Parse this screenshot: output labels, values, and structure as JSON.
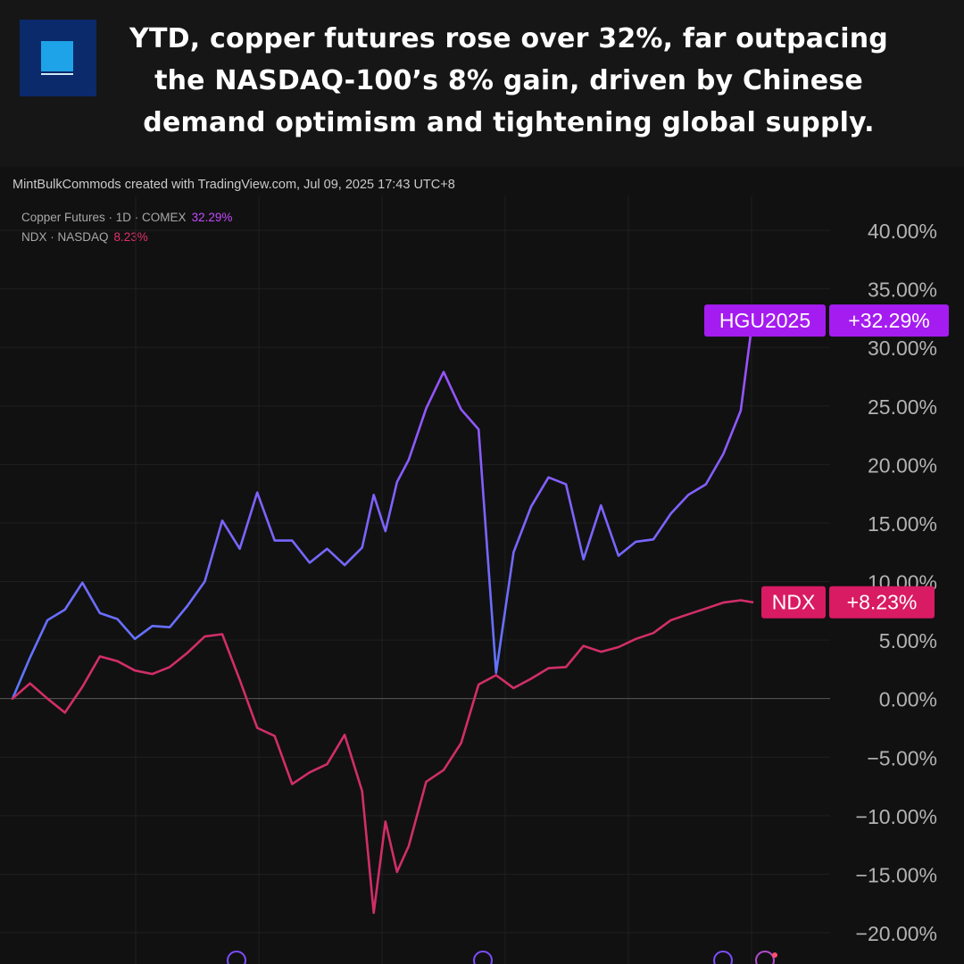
{
  "headline": "YTD, copper futures rose over 32%, far outpacing the NASDAQ-100’s 8% gain, driven by Chinese demand optimism and tightening global supply.",
  "attribution": "MintBulkCommods created with TradingView.com, Jul 09, 2025 17:43 UTC+8",
  "legend": [
    {
      "label": "Copper Futures · 1D · COMEX",
      "value": "32.29%",
      "color": "#c34bff"
    },
    {
      "label": "NDX · NASDAQ",
      "value": "8.23%",
      "color": "#e0306a"
    }
  ],
  "colors": {
    "copper_line_top": "#a24dff",
    "copper_line_bottom": "#5a78ff",
    "ndx_line": "#d12e68",
    "copper_tag": "#a51cf0",
    "ndx_tag": "#d81b62"
  },
  "chart_data": {
    "type": "line",
    "title": "",
    "xlabel": "",
    "ylabel": "",
    "ylim": [
      -20,
      40
    ],
    "y_ticks": [
      "40.00%",
      "35.00%",
      "30.00%",
      "25.00%",
      "20.00%",
      "15.00%",
      "10.00%",
      "5.00%",
      "0.00%",
      "−5.00%",
      "−10.00%",
      "−15.00%",
      "−20.00%"
    ],
    "y_tick_values": [
      40,
      35,
      30,
      25,
      20,
      15,
      10,
      5,
      0,
      -5,
      -10,
      -15,
      -20
    ],
    "grid": true,
    "x_range": [
      0,
      127
    ],
    "series": [
      {
        "name": "HGU2025",
        "color": "#a24dff",
        "x": [
          0,
          3,
          6,
          9,
          12,
          15,
          18,
          21,
          24,
          27,
          30,
          33,
          36,
          39,
          42,
          45,
          48,
          51,
          54,
          57,
          60,
          62,
          64,
          66,
          68,
          71,
          74,
          77,
          80,
          83,
          86,
          89,
          92,
          95,
          98,
          101,
          104,
          107,
          110,
          113,
          116,
          119,
          122,
          125,
          127
        ],
        "values": [
          0,
          3.5,
          6.7,
          7.6,
          9.9,
          7.3,
          6.8,
          5.1,
          6.2,
          6.1,
          7.9,
          10.0,
          15.2,
          12.8,
          17.6,
          13.5,
          13.5,
          11.6,
          12.8,
          11.4,
          12.9,
          17.4,
          14.3,
          18.5,
          20.4,
          24.8,
          27.9,
          24.7,
          23.0,
          2.2,
          12.5,
          16.4,
          18.9,
          18.3,
          11.9,
          16.5,
          12.2,
          13.4,
          13.6,
          15.8,
          17.4,
          18.3,
          20.9,
          24.6,
          32.29
        ]
      },
      {
        "name": "NDX",
        "color": "#d12e68",
        "x": [
          0,
          3,
          6,
          9,
          12,
          15,
          18,
          21,
          24,
          27,
          30,
          33,
          36,
          39,
          42,
          45,
          48,
          51,
          54,
          57,
          60,
          62,
          64,
          66,
          68,
          71,
          74,
          77,
          80,
          83,
          86,
          89,
          92,
          95,
          98,
          101,
          104,
          107,
          110,
          113,
          116,
          119,
          122,
          125,
          127
        ],
        "values": [
          0,
          1.3,
          0.0,
          -1.2,
          1.0,
          3.6,
          3.2,
          2.4,
          2.1,
          2.7,
          3.9,
          5.3,
          5.5,
          1.6,
          -2.5,
          -3.2,
          -7.3,
          -6.3,
          -5.6,
          -3.1,
          -7.9,
          -18.3,
          -10.5,
          -14.8,
          -12.6,
          -7.1,
          -6.1,
          -3.8,
          1.2,
          2.0,
          0.9,
          1.7,
          2.6,
          2.7,
          4.5,
          4.0,
          4.4,
          5.1,
          5.6,
          6.7,
          7.2,
          7.7,
          8.2,
          8.4,
          8.23
        ]
      }
    ],
    "last_value_labels": [
      {
        "name": "HGU2025",
        "value": "+32.29%"
      },
      {
        "name": "NDX",
        "value": "+8.23%"
      }
    ]
  }
}
